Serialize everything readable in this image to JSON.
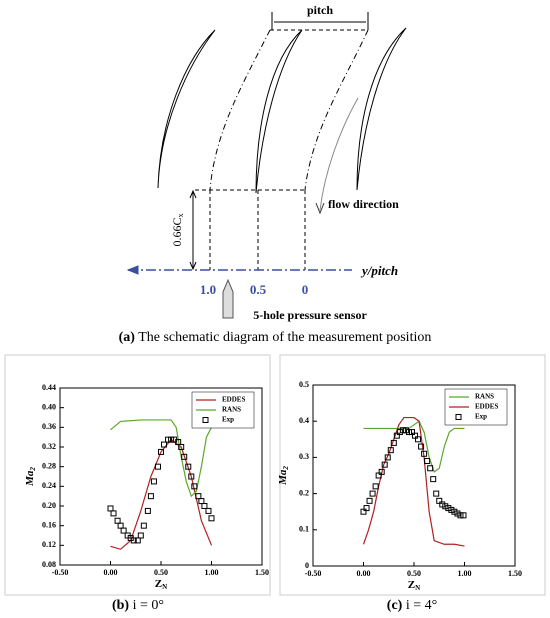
{
  "diagram": {
    "pitch": "pitch",
    "flow_direction": "flow direction",
    "height": {
      "main": "0.66C",
      "sub": "x"
    },
    "axis": "y/pitch",
    "positions": [
      "1.0",
      "0.5",
      "0"
    ],
    "sensor": "5-hole pressure sensor"
  },
  "captions": [
    {
      "label": "(a)",
      "text": "The schematic diagram of the measurement position"
    },
    {
      "label": "(b)",
      "text": "i = 0°"
    },
    {
      "label": "(c)",
      "text": "i = 4°"
    }
  ],
  "chart_data": [
    {
      "type": "line",
      "xlabel": "Z",
      "xlabel_sub": "N",
      "ylabel": "Ma",
      "ylabel_sub": "2",
      "xlim": [
        -0.5,
        1.5
      ],
      "xticks": [
        {
          "value": -0.5,
          "label": "-0.50"
        },
        {
          "value": 0,
          "label": "0.00"
        },
        {
          "value": 0.5,
          "label": "0.50"
        },
        {
          "value": 1,
          "label": "1.00"
        },
        {
          "value": 1.5,
          "label": "1.50"
        }
      ],
      "ylim": [
        0.08,
        0.44
      ],
      "yticks": [
        0.08,
        0.12,
        0.16,
        {
          "value": 0.2,
          "label": "0.20"
        },
        0.24,
        0.28,
        0.32,
        0.36,
        {
          "value": 0.4,
          "label": "0.40"
        },
        0.44
      ],
      "legend": "top right",
      "series": [
        {
          "name": "EDDES",
          "color": "#b02020",
          "kind": "line",
          "x": [
            0,
            0.1,
            0.2,
            0.3,
            0.4,
            0.5,
            0.6,
            0.7,
            0.8,
            0.9,
            1.0
          ],
          "values": [
            0.118,
            0.112,
            0.13,
            0.19,
            0.26,
            0.31,
            0.335,
            0.32,
            0.26,
            0.17,
            0.12
          ]
        },
        {
          "name": "RANS",
          "color": "#5aa82a",
          "kind": "line",
          "x": [
            0,
            0.1,
            0.3,
            0.5,
            0.6,
            0.65,
            0.7,
            0.75,
            0.8,
            0.85,
            0.9,
            0.95,
            1.0
          ],
          "values": [
            0.355,
            0.372,
            0.375,
            0.375,
            0.375,
            0.36,
            0.3,
            0.25,
            0.22,
            0.23,
            0.28,
            0.34,
            0.36
          ]
        },
        {
          "name": "Exp",
          "color": "#000000",
          "kind": "markers",
          "x": [
            0,
            0.03,
            0.07,
            0.1,
            0.13,
            0.17,
            0.2,
            0.23,
            0.27,
            0.3,
            0.33,
            0.37,
            0.4,
            0.43,
            0.47,
            0.5,
            0.53,
            0.57,
            0.6,
            0.63,
            0.67,
            0.7,
            0.73,
            0.77,
            0.8,
            0.83,
            0.87,
            0.9,
            0.93,
            0.97,
            1.0
          ],
          "values": [
            0.195,
            0.185,
            0.17,
            0.16,
            0.15,
            0.14,
            0.135,
            0.13,
            0.13,
            0.14,
            0.16,
            0.19,
            0.22,
            0.25,
            0.28,
            0.31,
            0.325,
            0.335,
            0.335,
            0.335,
            0.33,
            0.32,
            0.3,
            0.28,
            0.26,
            0.24,
            0.22,
            0.21,
            0.2,
            0.19,
            0.175
          ]
        }
      ]
    },
    {
      "type": "line",
      "xlabel": "Z",
      "xlabel_sub": "N",
      "ylabel": "Ma",
      "ylabel_sub": "2",
      "xlim": [
        -0.5,
        1.5
      ],
      "xticks": [
        {
          "value": -0.5,
          "label": "-0.50"
        },
        {
          "value": 0,
          "label": "0.00"
        },
        {
          "value": 0.5,
          "label": "0.50"
        },
        {
          "value": 1,
          "label": "1.00"
        },
        {
          "value": 1.5,
          "label": "1.50"
        }
      ],
      "ylim": [
        0,
        0.5
      ],
      "yticks": [
        0,
        0.1,
        0.2,
        0.3,
        0.4,
        0.5
      ],
      "legend": "top right",
      "series": [
        {
          "name": "RANS",
          "color": "#5aa82a",
          "kind": "line",
          "x": [
            0,
            0.3,
            0.45,
            0.5,
            0.55,
            0.6,
            0.65,
            0.7,
            0.75,
            0.8,
            0.85,
            0.9,
            1.0
          ],
          "values": [
            0.38,
            0.38,
            0.38,
            0.39,
            0.4,
            0.37,
            0.3,
            0.26,
            0.27,
            0.33,
            0.37,
            0.38,
            0.38
          ]
        },
        {
          "name": "EDDES",
          "color": "#b02020",
          "kind": "line",
          "x": [
            0,
            0.05,
            0.1,
            0.15,
            0.2,
            0.25,
            0.3,
            0.35,
            0.4,
            0.5,
            0.55,
            0.6,
            0.65,
            0.7,
            0.8,
            0.9,
            1.0
          ],
          "values": [
            0.06,
            0.1,
            0.15,
            0.22,
            0.28,
            0.31,
            0.35,
            0.39,
            0.41,
            0.41,
            0.4,
            0.3,
            0.15,
            0.07,
            0.06,
            0.06,
            0.055
          ]
        },
        {
          "name": "Exp",
          "color": "#000000",
          "kind": "markers",
          "x": [
            0,
            0.03,
            0.06,
            0.09,
            0.12,
            0.15,
            0.18,
            0.21,
            0.24,
            0.27,
            0.3,
            0.33,
            0.36,
            0.39,
            0.42,
            0.45,
            0.48,
            0.51,
            0.54,
            0.57,
            0.6,
            0.63,
            0.66,
            0.69,
            0.72,
            0.75,
            0.78,
            0.81,
            0.84,
            0.87,
            0.9,
            0.93,
            0.96,
            0.99
          ],
          "values": [
            0.15,
            0.16,
            0.18,
            0.2,
            0.22,
            0.25,
            0.26,
            0.28,
            0.3,
            0.32,
            0.34,
            0.36,
            0.37,
            0.375,
            0.375,
            0.37,
            0.37,
            0.36,
            0.35,
            0.33,
            0.31,
            0.29,
            0.27,
            0.24,
            0.2,
            0.18,
            0.17,
            0.165,
            0.16,
            0.155,
            0.15,
            0.145,
            0.14,
            0.14
          ]
        }
      ]
    }
  ]
}
